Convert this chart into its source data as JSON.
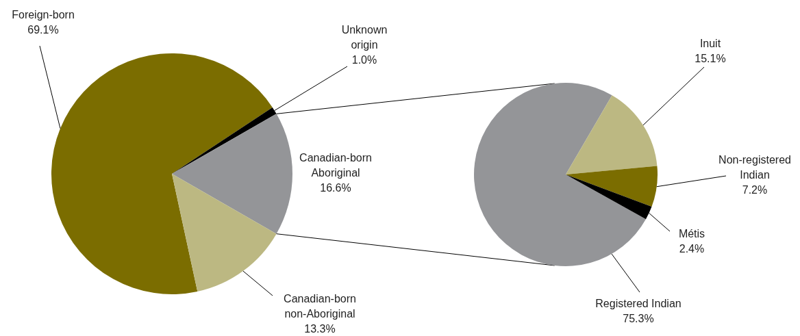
{
  "chart_data": [
    {
      "type": "pie",
      "categories": [
        "Foreign-born",
        "Unknown origin",
        "Canadian-born Aboriginal",
        "Canadian-born non-Aboriginal"
      ],
      "values": [
        69.1,
        1.0,
        16.6,
        13.3
      ],
      "colors": [
        "#7b6d00",
        "#000000",
        "#949598",
        "#bcb882"
      ],
      "value_labels": [
        "69.1%",
        "1.0%",
        "16.6%",
        "13.3%"
      ]
    },
    {
      "type": "pie",
      "categories": [
        "Registered Indian",
        "Inuit",
        "Non-registered Indian",
        "Métis"
      ],
      "values": [
        75.3,
        15.1,
        7.2,
        2.4
      ],
      "colors": [
        "#949598",
        "#bcb882",
        "#7b6d00",
        "#000000"
      ],
      "value_labels": [
        "75.3%",
        "15.1%",
        "7.2%",
        "2.4%"
      ]
    }
  ]
}
